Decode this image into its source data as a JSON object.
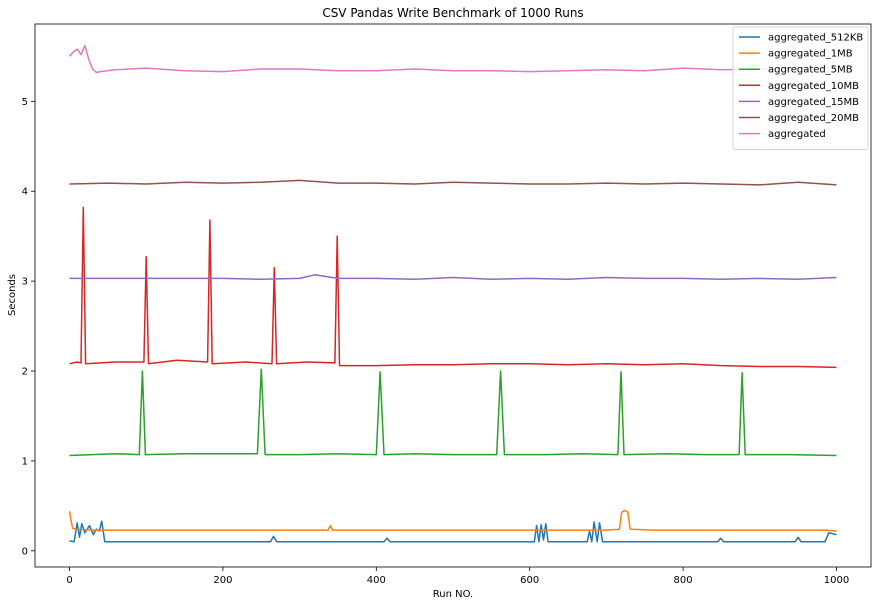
{
  "chart_data": {
    "type": "line",
    "title": "CSV Pandas Write Benchmark of 1000 Runs",
    "xlabel": "Run NO.",
    "ylabel": "Seconds",
    "xlim": [
      -45,
      1045
    ],
    "ylim": [
      -0.18,
      5.86
    ],
    "xticks": [
      0,
      200,
      400,
      600,
      800,
      1000
    ],
    "yticks": [
      0,
      1,
      2,
      3,
      4,
      5
    ],
    "grid": false,
    "legend_position": "top-right",
    "series": [
      {
        "name": "aggregated_512KB",
        "color": "#1f77b4",
        "points": [
          [
            0,
            0.11
          ],
          [
            6,
            0.1
          ],
          [
            10,
            0.31
          ],
          [
            13,
            0.15
          ],
          [
            16,
            0.3
          ],
          [
            20,
            0.2
          ],
          [
            26,
            0.28
          ],
          [
            31,
            0.18
          ],
          [
            35,
            0.24
          ],
          [
            39,
            0.22
          ],
          [
            42,
            0.33
          ],
          [
            46,
            0.1
          ],
          [
            100,
            0.1
          ],
          [
            150,
            0.1
          ],
          [
            200,
            0.1
          ],
          [
            262,
            0.1
          ],
          [
            266,
            0.16
          ],
          [
            270,
            0.1
          ],
          [
            350,
            0.1
          ],
          [
            410,
            0.1
          ],
          [
            414,
            0.14
          ],
          [
            418,
            0.1
          ],
          [
            500,
            0.1
          ],
          [
            580,
            0.1
          ],
          [
            606,
            0.1
          ],
          [
            609,
            0.28
          ],
          [
            612,
            0.1
          ],
          [
            615,
            0.29
          ],
          [
            618,
            0.12
          ],
          [
            621,
            0.3
          ],
          [
            624,
            0.1
          ],
          [
            650,
            0.1
          ],
          [
            675,
            0.1
          ],
          [
            678,
            0.22
          ],
          [
            681,
            0.1
          ],
          [
            684,
            0.32
          ],
          [
            688,
            0.1
          ],
          [
            691,
            0.31
          ],
          [
            695,
            0.1
          ],
          [
            760,
            0.1
          ],
          [
            845,
            0.1
          ],
          [
            849,
            0.14
          ],
          [
            853,
            0.1
          ],
          [
            900,
            0.1
          ],
          [
            946,
            0.1
          ],
          [
            950,
            0.15
          ],
          [
            954,
            0.1
          ],
          [
            985,
            0.1
          ],
          [
            990,
            0.2
          ],
          [
            1000,
            0.18
          ]
        ]
      },
      {
        "name": "aggregated_1MB",
        "color": "#ff7f0e",
        "points": [
          [
            0,
            0.44
          ],
          [
            4,
            0.25
          ],
          [
            10,
            0.24
          ],
          [
            30,
            0.23
          ],
          [
            50,
            0.23
          ],
          [
            100,
            0.23
          ],
          [
            150,
            0.23
          ],
          [
            200,
            0.23
          ],
          [
            250,
            0.23
          ],
          [
            300,
            0.23
          ],
          [
            337,
            0.23
          ],
          [
            340,
            0.28
          ],
          [
            343,
            0.23
          ],
          [
            400,
            0.23
          ],
          [
            450,
            0.23
          ],
          [
            500,
            0.23
          ],
          [
            550,
            0.23
          ],
          [
            600,
            0.23
          ],
          [
            650,
            0.23
          ],
          [
            700,
            0.23
          ],
          [
            717,
            0.24
          ],
          [
            720,
            0.43
          ],
          [
            724,
            0.45
          ],
          [
            728,
            0.43
          ],
          [
            731,
            0.24
          ],
          [
            760,
            0.23
          ],
          [
            800,
            0.23
          ],
          [
            850,
            0.23
          ],
          [
            900,
            0.23
          ],
          [
            950,
            0.23
          ],
          [
            985,
            0.23
          ],
          [
            1000,
            0.22
          ]
        ]
      },
      {
        "name": "aggregated_5MB",
        "color": "#2ca02c",
        "points": [
          [
            0,
            1.06
          ],
          [
            30,
            1.07
          ],
          [
            60,
            1.08
          ],
          [
            91,
            1.07
          ],
          [
            95,
            2.0
          ],
          [
            99,
            1.07
          ],
          [
            150,
            1.08
          ],
          [
            200,
            1.08
          ],
          [
            245,
            1.08
          ],
          [
            250,
            2.02
          ],
          [
            255,
            1.07
          ],
          [
            300,
            1.07
          ],
          [
            350,
            1.08
          ],
          [
            400,
            1.07
          ],
          [
            405,
            1.99
          ],
          [
            410,
            1.07
          ],
          [
            450,
            1.08
          ],
          [
            500,
            1.07
          ],
          [
            557,
            1.07
          ],
          [
            562,
            2.0
          ],
          [
            567,
            1.07
          ],
          [
            620,
            1.07
          ],
          [
            670,
            1.08
          ],
          [
            715,
            1.07
          ],
          [
            719,
            1.99
          ],
          [
            723,
            1.07
          ],
          [
            780,
            1.08
          ],
          [
            830,
            1.07
          ],
          [
            873,
            1.07
          ],
          [
            877,
            1.98
          ],
          [
            881,
            1.07
          ],
          [
            940,
            1.07
          ],
          [
            1000,
            1.06
          ]
        ]
      },
      {
        "name": "aggregated_10MB",
        "color": "#d62728",
        "points": [
          [
            0,
            2.08
          ],
          [
            10,
            2.1
          ],
          [
            15,
            2.09
          ],
          [
            18,
            3.82
          ],
          [
            21,
            2.08
          ],
          [
            60,
            2.1
          ],
          [
            97,
            2.1
          ],
          [
            100,
            3.27
          ],
          [
            103,
            2.08
          ],
          [
            140,
            2.12
          ],
          [
            180,
            2.1
          ],
          [
            183,
            3.68
          ],
          [
            186,
            2.08
          ],
          [
            230,
            2.1
          ],
          [
            264,
            2.08
          ],
          [
            267,
            3.15
          ],
          [
            270,
            2.08
          ],
          [
            310,
            2.1
          ],
          [
            346,
            2.09
          ],
          [
            349,
            3.5
          ],
          [
            352,
            2.06
          ],
          [
            400,
            2.06
          ],
          [
            450,
            2.07
          ],
          [
            500,
            2.07
          ],
          [
            550,
            2.08
          ],
          [
            600,
            2.08
          ],
          [
            650,
            2.07
          ],
          [
            700,
            2.08
          ],
          [
            750,
            2.07
          ],
          [
            800,
            2.08
          ],
          [
            850,
            2.06
          ],
          [
            900,
            2.05
          ],
          [
            950,
            2.05
          ],
          [
            1000,
            2.04
          ]
        ]
      },
      {
        "name": "aggregated_15MB",
        "color": "#9467bd",
        "points": [
          [
            0,
            3.03
          ],
          [
            50,
            3.03
          ],
          [
            100,
            3.03
          ],
          [
            150,
            3.03
          ],
          [
            200,
            3.03
          ],
          [
            250,
            3.02
          ],
          [
            300,
            3.03
          ],
          [
            320,
            3.07
          ],
          [
            350,
            3.03
          ],
          [
            400,
            3.03
          ],
          [
            450,
            3.02
          ],
          [
            500,
            3.04
          ],
          [
            550,
            3.02
          ],
          [
            600,
            3.03
          ],
          [
            650,
            3.02
          ],
          [
            700,
            3.04
          ],
          [
            750,
            3.03
          ],
          [
            800,
            3.03
          ],
          [
            850,
            3.02
          ],
          [
            900,
            3.03
          ],
          [
            950,
            3.02
          ],
          [
            1000,
            3.04
          ]
        ]
      },
      {
        "name": "aggregated_20MB",
        "color": "#8c564b",
        "points": [
          [
            0,
            4.08
          ],
          [
            50,
            4.09
          ],
          [
            100,
            4.08
          ],
          [
            150,
            4.1
          ],
          [
            200,
            4.09
          ],
          [
            250,
            4.1
          ],
          [
            300,
            4.12
          ],
          [
            350,
            4.09
          ],
          [
            400,
            4.09
          ],
          [
            450,
            4.08
          ],
          [
            500,
            4.1
          ],
          [
            550,
            4.09
          ],
          [
            600,
            4.08
          ],
          [
            650,
            4.08
          ],
          [
            700,
            4.09
          ],
          [
            750,
            4.08
          ],
          [
            800,
            4.09
          ],
          [
            850,
            4.08
          ],
          [
            900,
            4.07
          ],
          [
            950,
            4.1
          ],
          [
            1000,
            4.07
          ]
        ]
      },
      {
        "name": "aggregated",
        "color": "#e377c2",
        "points": [
          [
            0,
            5.5
          ],
          [
            5,
            5.55
          ],
          [
            10,
            5.58
          ],
          [
            15,
            5.52
          ],
          [
            20,
            5.62
          ],
          [
            25,
            5.47
          ],
          [
            30,
            5.36
          ],
          [
            35,
            5.32
          ],
          [
            40,
            5.33
          ],
          [
            60,
            5.35
          ],
          [
            100,
            5.37
          ],
          [
            150,
            5.34
          ],
          [
            200,
            5.33
          ],
          [
            250,
            5.36
          ],
          [
            300,
            5.36
          ],
          [
            350,
            5.34
          ],
          [
            400,
            5.34
          ],
          [
            450,
            5.36
          ],
          [
            500,
            5.34
          ],
          [
            550,
            5.34
          ],
          [
            600,
            5.33
          ],
          [
            650,
            5.34
          ],
          [
            700,
            5.35
          ],
          [
            750,
            5.34
          ],
          [
            800,
            5.37
          ],
          [
            850,
            5.35
          ],
          [
            900,
            5.36
          ],
          [
            950,
            5.37
          ],
          [
            1000,
            5.38
          ]
        ]
      }
    ]
  }
}
